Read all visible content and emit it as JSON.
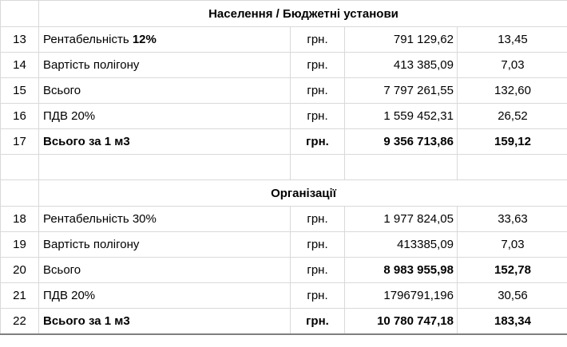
{
  "section_1": {
    "title": "Населення / Бюджетні установи",
    "rows": [
      {
        "num": "13",
        "name": "Рентабельність ",
        "name_bold": "12%",
        "unit": "грн.",
        "amount": "791 129,62",
        "rate": "13,45"
      },
      {
        "num": "14",
        "name": "Вартість полігону",
        "unit": "грн.",
        "amount": "413 385,09",
        "rate": "7,03"
      },
      {
        "num": "15",
        "name": "Всього",
        "unit": "грн.",
        "amount": "7 797 261,55",
        "rate": "132,60"
      },
      {
        "num": "16",
        "name": "ПДВ 20%",
        "unit": "грн.",
        "amount": "1 559 452,31",
        "rate": "26,52"
      },
      {
        "num": "17",
        "name": "Всього за 1 м3",
        "unit": "грн.",
        "amount": "9 356 713,86",
        "rate": "159,12"
      }
    ]
  },
  "section_2": {
    "title": "Організації",
    "rows": [
      {
        "num": "18",
        "name": "Рентабельність 30%",
        "unit": "грн.",
        "amount": "1 977 824,05",
        "rate": "33,63"
      },
      {
        "num": "19",
        "name": "Вартість полігону",
        "unit": "грн.",
        "amount": "413385,09",
        "rate": "7,03"
      },
      {
        "num": "20",
        "name": "Всього",
        "unit": "грн.",
        "amount": "8 983 955,98",
        "rate": "152,78"
      },
      {
        "num": "21",
        "name": "ПДВ 20%",
        "unit": "грн.",
        "amount": "1796791,196",
        "rate": "30,56"
      },
      {
        "num": "22",
        "name": "Всього за 1 м3",
        "unit": "грн.",
        "amount": "10 780 747,18",
        "rate": "183,34"
      }
    ]
  }
}
